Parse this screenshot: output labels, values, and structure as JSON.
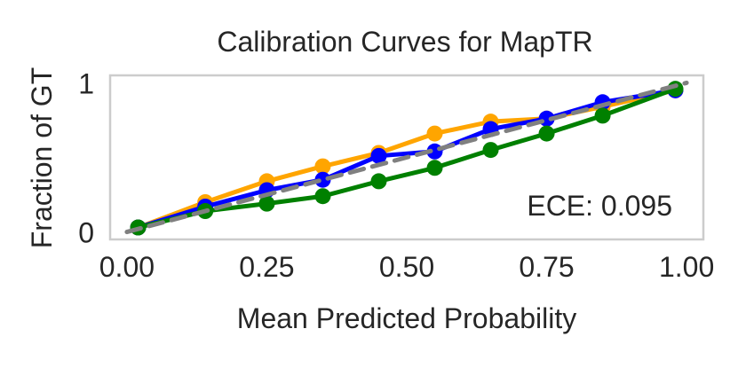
{
  "chart_data": {
    "type": "line",
    "title": "Calibration Curves for MapTR",
    "xlabel": "Mean Predicted Probability",
    "ylabel": "Fraction of GT",
    "xlim": [
      -0.03,
      1.03
    ],
    "ylim": [
      -0.05,
      1.05
    ],
    "xticks": [
      0.0,
      0.25,
      0.5,
      0.75,
      1.0
    ],
    "xtick_labels": [
      "0.00",
      "0.25",
      "0.50",
      "0.75",
      "1.00"
    ],
    "yticks": [
      0,
      1
    ],
    "ytick_labels": [
      "0",
      "1"
    ],
    "grid": false,
    "annotation": "ECE: 0.095",
    "series": [
      {
        "name": "orange-series",
        "color": "#FFA500",
        "x": [
          0.02,
          0.14,
          0.25,
          0.35,
          0.45,
          0.55,
          0.65,
          0.75,
          0.85,
          0.98
        ],
        "y": [
          0.03,
          0.2,
          0.34,
          0.44,
          0.53,
          0.66,
          0.74,
          0.76,
          0.84,
          0.95
        ]
      },
      {
        "name": "blue-series",
        "color": "#0000FF",
        "x": [
          0.02,
          0.14,
          0.25,
          0.35,
          0.45,
          0.55,
          0.65,
          0.75,
          0.85,
          0.98
        ],
        "y": [
          0.03,
          0.17,
          0.28,
          0.35,
          0.51,
          0.54,
          0.69,
          0.76,
          0.87,
          0.95
        ]
      },
      {
        "name": "green-series",
        "color": "#008000",
        "x": [
          0.02,
          0.14,
          0.25,
          0.35,
          0.45,
          0.55,
          0.65,
          0.75,
          0.85,
          0.98
        ],
        "y": [
          0.03,
          0.14,
          0.19,
          0.24,
          0.34,
          0.43,
          0.55,
          0.66,
          0.78,
          0.96
        ]
      },
      {
        "name": "perfect-calibration",
        "color": "#808080",
        "dashed": true,
        "x": [
          0.0,
          1.0
        ],
        "y": [
          0.0,
          1.0
        ]
      }
    ]
  }
}
